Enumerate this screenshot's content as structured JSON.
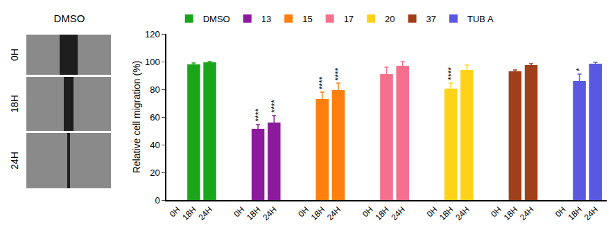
{
  "image_panel": {
    "title": "DMSO",
    "rows": [
      "0H",
      "18H",
      "24H"
    ]
  },
  "chart_data": {
    "type": "bar",
    "y_label": "Relative cell migration (%)",
    "categories": [
      "0H",
      "18H",
      "24H",
      null,
      "0H",
      "18H",
      "24H",
      null,
      "0H",
      "18H",
      "24H",
      null,
      "0H",
      "18H",
      "24H",
      null,
      "0H",
      "18H",
      "24H",
      null,
      "0H",
      "18H",
      "24H",
      null,
      "0H",
      "18H",
      "24H"
    ],
    "ylim": [
      0,
      120
    ],
    "yticks": [
      0,
      20,
      40,
      60,
      80,
      100,
      120
    ],
    "grid": false,
    "legend": "top",
    "series": [
      {
        "name": "DMSO",
        "color": "#1aa61a",
        "values": [
          null,
          98,
          99.5,
          null,
          null,
          null,
          null,
          null,
          null,
          null,
          null,
          null,
          null,
          null,
          null,
          null,
          null,
          null,
          null,
          null,
          null,
          null,
          null,
          null,
          null,
          null,
          null
        ],
        "errors": [
          null,
          1,
          0.5,
          null,
          null,
          null,
          null,
          null,
          null,
          null,
          null,
          null,
          null,
          null,
          null,
          null,
          null,
          null,
          null,
          null,
          null,
          null,
          null,
          null,
          null,
          null,
          null
        ],
        "significance": [
          null,
          null,
          null,
          null,
          null,
          null,
          null,
          null,
          null,
          null,
          null,
          null,
          null,
          null,
          null,
          null,
          null,
          null,
          null,
          null,
          null,
          null,
          null,
          null,
          null,
          null,
          null
        ]
      },
      {
        "name": "13",
        "color": "#8b1a9c",
        "values": [
          null,
          null,
          null,
          null,
          null,
          51.5,
          56,
          null,
          null,
          null,
          null,
          null,
          null,
          null,
          null,
          null,
          null,
          null,
          null,
          null,
          null,
          null,
          null,
          null,
          null,
          null,
          null
        ],
        "errors": [
          null,
          null,
          null,
          null,
          null,
          3,
          5,
          null,
          null,
          null,
          null,
          null,
          null,
          null,
          null,
          null,
          null,
          null,
          null,
          null,
          null,
          null,
          null,
          null,
          null,
          null,
          null
        ],
        "significance": [
          null,
          null,
          null,
          null,
          null,
          "****",
          "****",
          null,
          null,
          null,
          null,
          null,
          null,
          null,
          null,
          null,
          null,
          null,
          null,
          null,
          null,
          null,
          null,
          null,
          null,
          null,
          null
        ]
      },
      {
        "name": "15",
        "color": "#ff7f0e",
        "values": [
          null,
          null,
          null,
          null,
          null,
          null,
          null,
          null,
          null,
          73,
          79.5,
          null,
          null,
          null,
          null,
          null,
          null,
          null,
          null,
          null,
          null,
          null,
          null,
          null,
          null,
          null,
          null
        ],
        "errors": [
          null,
          null,
          null,
          null,
          null,
          null,
          null,
          null,
          null,
          5,
          5,
          null,
          null,
          null,
          null,
          null,
          null,
          null,
          null,
          null,
          null,
          null,
          null,
          null,
          null,
          null,
          null
        ],
        "significance": [
          null,
          null,
          null,
          null,
          null,
          null,
          null,
          null,
          null,
          "****",
          "****",
          null,
          null,
          null,
          null,
          null,
          null,
          null,
          null,
          null,
          null,
          null,
          null,
          null,
          null,
          null,
          null
        ]
      },
      {
        "name": "17",
        "color": "#f5708c",
        "values": [
          null,
          null,
          null,
          null,
          null,
          null,
          null,
          null,
          null,
          null,
          null,
          null,
          null,
          91,
          97,
          null,
          null,
          null,
          null,
          null,
          null,
          null,
          null,
          null,
          null,
          null,
          null
        ],
        "errors": [
          null,
          null,
          null,
          null,
          null,
          null,
          null,
          null,
          null,
          null,
          null,
          null,
          null,
          5,
          3,
          null,
          null,
          null,
          null,
          null,
          null,
          null,
          null,
          null,
          null,
          null,
          null
        ],
        "significance": [
          null,
          null,
          null,
          null,
          null,
          null,
          null,
          null,
          null,
          null,
          null,
          null,
          null,
          null,
          null,
          null,
          null,
          null,
          null,
          null,
          null,
          null,
          null,
          null,
          null,
          null,
          null
        ]
      },
      {
        "name": "20",
        "color": "#ffd21a",
        "values": [
          null,
          null,
          null,
          null,
          null,
          null,
          null,
          null,
          null,
          null,
          null,
          null,
          null,
          null,
          null,
          null,
          null,
          80.5,
          94,
          null,
          null,
          null,
          null,
          null,
          null,
          null,
          null
        ],
        "errors": [
          null,
          null,
          null,
          null,
          null,
          null,
          null,
          null,
          null,
          null,
          null,
          null,
          null,
          null,
          null,
          null,
          null,
          4,
          3.5,
          null,
          null,
          null,
          null,
          null,
          null,
          null,
          null
        ],
        "significance": [
          null,
          null,
          null,
          null,
          null,
          null,
          null,
          null,
          null,
          null,
          null,
          null,
          null,
          null,
          null,
          null,
          null,
          "****",
          null,
          null,
          null,
          null,
          null,
          null,
          null,
          null,
          null
        ]
      },
      {
        "name": "37",
        "color": "#a0401a",
        "values": [
          null,
          null,
          null,
          null,
          null,
          null,
          null,
          null,
          null,
          null,
          null,
          null,
          null,
          null,
          null,
          null,
          null,
          null,
          null,
          null,
          null,
          93,
          97.5,
          null,
          null,
          null,
          null
        ],
        "errors": [
          null,
          null,
          null,
          null,
          null,
          null,
          null,
          null,
          null,
          null,
          null,
          null,
          null,
          null,
          null,
          null,
          null,
          null,
          null,
          null,
          null,
          1,
          1,
          null,
          null,
          null,
          null
        ],
        "significance": [
          null,
          null,
          null,
          null,
          null,
          null,
          null,
          null,
          null,
          null,
          null,
          null,
          null,
          null,
          null,
          null,
          null,
          null,
          null,
          null,
          null,
          null,
          null,
          null,
          null,
          null,
          null
        ]
      },
      {
        "name": "TUB A",
        "color": "#5858e0",
        "values": [
          null,
          null,
          null,
          null,
          null,
          null,
          null,
          null,
          null,
          null,
          null,
          null,
          null,
          null,
          null,
          null,
          null,
          null,
          null,
          null,
          null,
          null,
          null,
          null,
          null,
          86,
          98.5
        ],
        "errors": [
          null,
          null,
          null,
          null,
          null,
          null,
          null,
          null,
          null,
          null,
          null,
          null,
          null,
          null,
          null,
          null,
          null,
          null,
          null,
          null,
          null,
          null,
          null,
          null,
          null,
          5,
          1
        ],
        "significance": [
          null,
          null,
          null,
          null,
          null,
          null,
          null,
          null,
          null,
          null,
          null,
          null,
          null,
          null,
          null,
          null,
          null,
          null,
          null,
          null,
          null,
          null,
          null,
          null,
          null,
          "*",
          null
        ]
      }
    ]
  }
}
